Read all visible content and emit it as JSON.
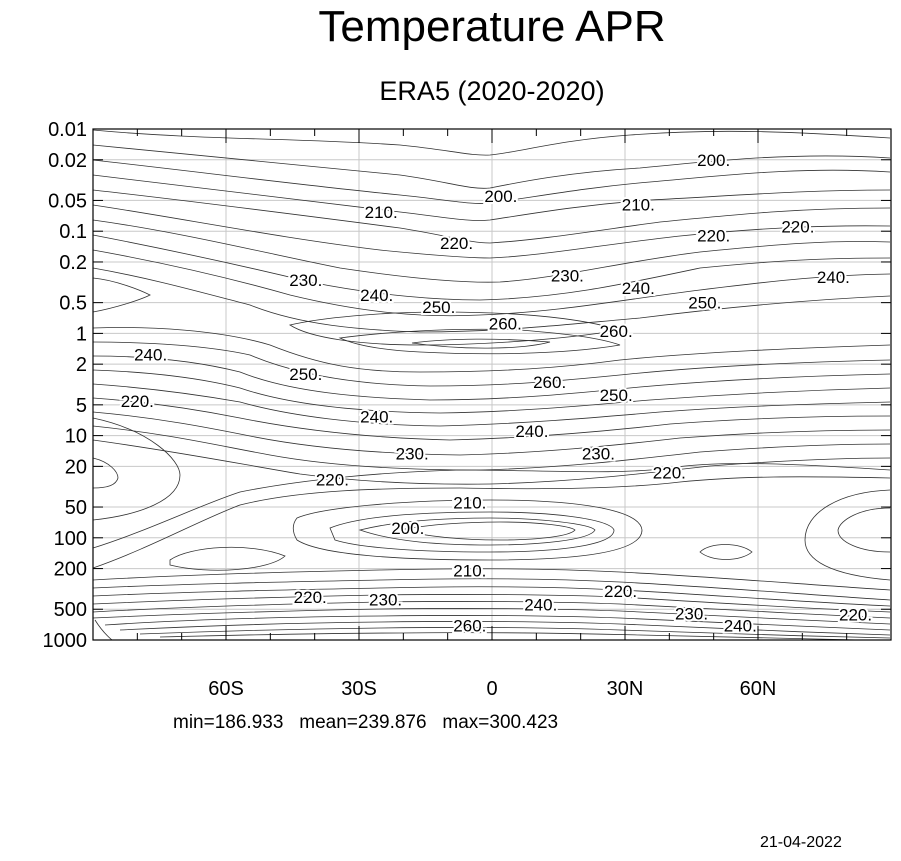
{
  "title": "Temperature APR",
  "subtitle": "ERA5 (2020-2020)",
  "stats": {
    "min": "min=186.933",
    "mean": "mean=239.876",
    "max": "max=300.423"
  },
  "date": "21-04-2022",
  "chart_data": {
    "type": "contour",
    "variable": "Temperature",
    "xlim": [
      -90,
      90
    ],
    "ylim": [
      0.01,
      1000
    ],
    "y_scale": "log",
    "y_inverted": true,
    "grid": true,
    "x_ticks": [
      {
        "value": -60,
        "label": "60S"
      },
      {
        "value": -30,
        "label": "30S"
      },
      {
        "value": 0,
        "label": "0"
      },
      {
        "value": 30,
        "label": "30N"
      },
      {
        "value": 60,
        "label": "60N"
      }
    ],
    "y_ticks": [
      {
        "value": 0.01,
        "label": "0.01"
      },
      {
        "value": 0.02,
        "label": "0.02"
      },
      {
        "value": 0.05,
        "label": "0.05"
      },
      {
        "value": 0.1,
        "label": "0.1"
      },
      {
        "value": 0.2,
        "label": "0.2"
      },
      {
        "value": 0.5,
        "label": "0.5"
      },
      {
        "value": 1,
        "label": "1"
      },
      {
        "value": 2,
        "label": "2"
      },
      {
        "value": 5,
        "label": "5"
      },
      {
        "value": 10,
        "label": "10"
      },
      {
        "value": 20,
        "label": "20"
      },
      {
        "value": 50,
        "label": "50"
      },
      {
        "value": 100,
        "label": "100"
      },
      {
        "value": 200,
        "label": "200"
      },
      {
        "value": 500,
        "label": "500"
      },
      {
        "value": 1000,
        "label": "1000"
      }
    ],
    "contour_labels": [
      {
        "text": "200.",
        "lat": 50,
        "p": 0.02
      },
      {
        "text": "200.",
        "lat": 2,
        "p": 0.045
      },
      {
        "text": "210.",
        "lat": -25,
        "p": 0.065
      },
      {
        "text": "210.",
        "lat": 33,
        "p": 0.055
      },
      {
        "text": "220.",
        "lat": -8,
        "p": 0.13
      },
      {
        "text": "220.",
        "lat": 50,
        "p": 0.11
      },
      {
        "text": "220.",
        "lat": 69,
        "p": 0.09
      },
      {
        "text": "230.",
        "lat": -42,
        "p": 0.3
      },
      {
        "text": "230.",
        "lat": 17,
        "p": 0.27
      },
      {
        "text": "240.",
        "lat": -26,
        "p": 0.42
      },
      {
        "text": "240.",
        "lat": 33,
        "p": 0.36
      },
      {
        "text": "240.",
        "lat": 77,
        "p": 0.28
      },
      {
        "text": "250.",
        "lat": -12,
        "p": 0.55
      },
      {
        "text": "250.",
        "lat": 48,
        "p": 0.5
      },
      {
        "text": "260.",
        "lat": 3,
        "p": 0.8
      },
      {
        "text": "260.",
        "lat": 28,
        "p": 0.95
      },
      {
        "text": "240.",
        "lat": -77,
        "p": 1.6
      },
      {
        "text": "250.",
        "lat": -42,
        "p": 2.5
      },
      {
        "text": "260.",
        "lat": 13,
        "p": 3.0
      },
      {
        "text": "250.",
        "lat": 28,
        "p": 4.0
      },
      {
        "text": "220.",
        "lat": -80,
        "p": 4.6
      },
      {
        "text": "240.",
        "lat": -26,
        "p": 6.5
      },
      {
        "text": "240.",
        "lat": 9,
        "p": 9.0
      },
      {
        "text": "230.",
        "lat": -18,
        "p": 15
      },
      {
        "text": "230.",
        "lat": 24,
        "p": 15
      },
      {
        "text": "220.",
        "lat": -36,
        "p": 27
      },
      {
        "text": "220.",
        "lat": 40,
        "p": 23
      },
      {
        "text": "210.",
        "lat": -5,
        "p": 45
      },
      {
        "text": "200.",
        "lat": -19,
        "p": 80
      },
      {
        "text": "210.",
        "lat": -5,
        "p": 210
      },
      {
        "text": "220.",
        "lat": -41,
        "p": 380
      },
      {
        "text": "230.",
        "lat": -24,
        "p": 400
      },
      {
        "text": "220.",
        "lat": 29,
        "p": 330
      },
      {
        "text": "240.",
        "lat": 11,
        "p": 450
      },
      {
        "text": "230.",
        "lat": 45,
        "p": 550
      },
      {
        "text": "240.",
        "lat": 56,
        "p": 720
      },
      {
        "text": "220.",
        "lat": 82,
        "p": 560
      },
      {
        "text": "260.",
        "lat": -5,
        "p": 720
      }
    ]
  }
}
